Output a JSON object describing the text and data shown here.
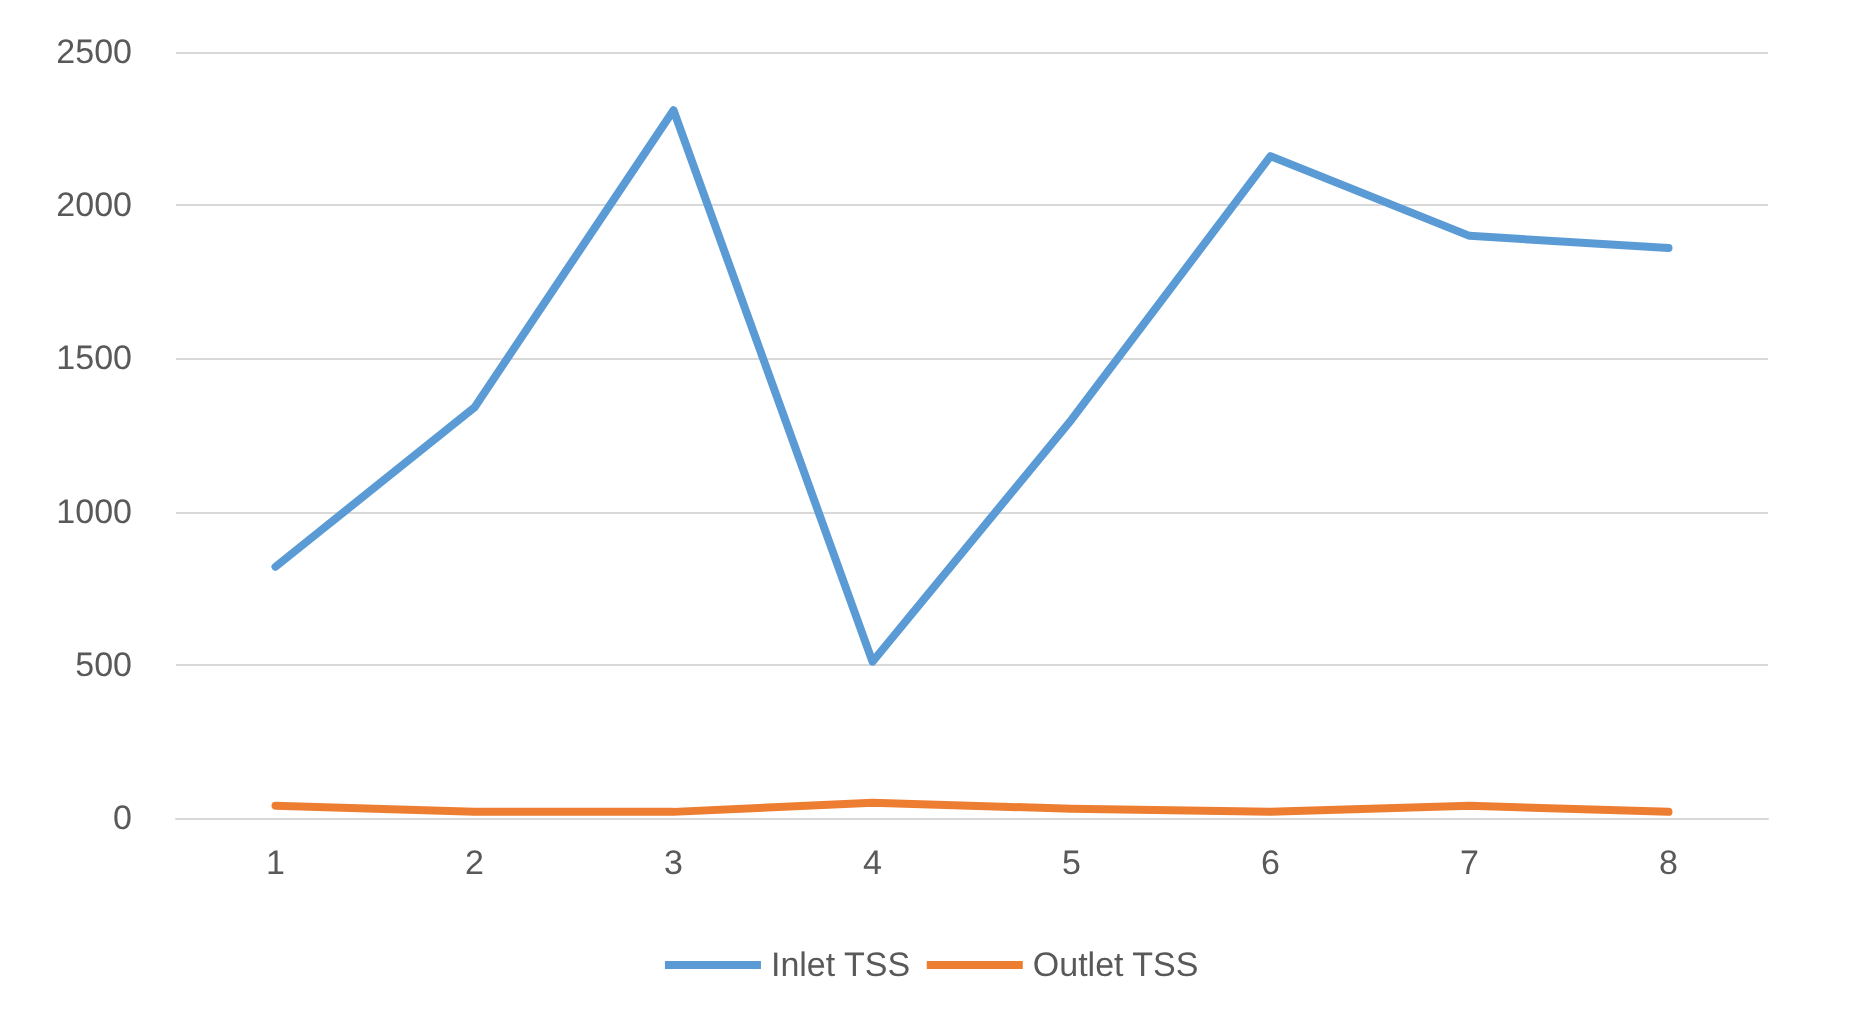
{
  "chart_data": {
    "type": "line",
    "categories": [
      "1",
      "2",
      "3",
      "4",
      "5",
      "6",
      "7",
      "8"
    ],
    "series": [
      {
        "name": "Inlet TSS",
        "color": "#5b9bd5",
        "values": [
          820,
          1340,
          2310,
          510,
          1300,
          2160,
          1900,
          1860
        ]
      },
      {
        "name": "Outlet TSS",
        "color": "#ed7d31",
        "values": [
          40,
          20,
          20,
          50,
          30,
          20,
          40,
          20
        ]
      }
    ],
    "ylim": [
      0,
      2500
    ],
    "yticks": [
      0,
      500,
      1000,
      1500,
      2000,
      2500
    ],
    "grid": "y",
    "legend": "bottom",
    "marker": "none",
    "line_style": "solid"
  }
}
